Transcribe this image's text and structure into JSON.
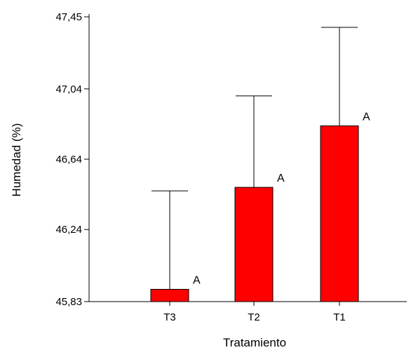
{
  "chart_data": {
    "type": "bar",
    "xlabel": "Tratamiento",
    "ylabel": "Humedad (%)",
    "ylim": [
      45.83,
      47.45
    ],
    "yticks": [
      "45,83",
      "46,24",
      "46,64",
      "47,04",
      "47,45"
    ],
    "ytick_values": [
      45.83,
      46.24,
      46.64,
      47.04,
      47.45
    ],
    "categories": [
      "T3",
      "T2",
      "T1"
    ],
    "series": [
      {
        "values": [
          45.9,
          46.48,
          46.83
        ],
        "error_upper": [
          46.46,
          47.0,
          47.39
        ]
      }
    ],
    "significance_letters": [
      "A",
      "A",
      "A"
    ],
    "bar_color": "#ff0000",
    "grid": false
  }
}
